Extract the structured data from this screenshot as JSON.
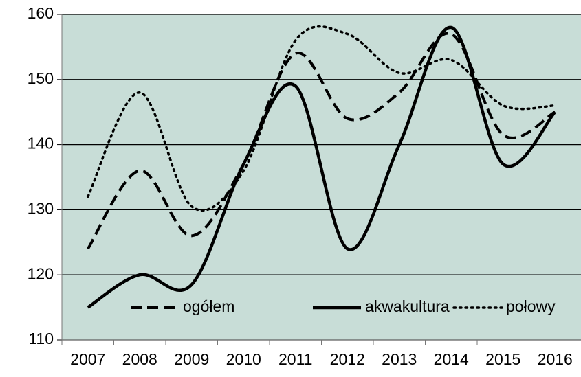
{
  "chart_data": {
    "type": "line",
    "categories": [
      "2007",
      "2008",
      "2009",
      "2010",
      "2011",
      "2012",
      "2013",
      "2014",
      "2015",
      "2016"
    ],
    "series": [
      {
        "name": "ogółem",
        "color": "#000000",
        "style": "dashed",
        "values": [
          124,
          136,
          126,
          137,
          154,
          144,
          148,
          157,
          141.5,
          145
        ]
      },
      {
        "name": "akwakultura",
        "color": "#000000",
        "style": "solid",
        "values": [
          115,
          120,
          118.5,
          137,
          149,
          124,
          140,
          158,
          137,
          145
        ]
      },
      {
        "name": "połowy",
        "color": "#000000",
        "style": "dotted",
        "values": [
          132,
          148,
          130.5,
          136,
          156,
          157,
          151,
          153,
          146,
          146
        ]
      }
    ],
    "ylim": [
      110,
      160
    ],
    "yticks": [
      110,
      120,
      130,
      140,
      150,
      160
    ],
    "grid": true,
    "smooth": true,
    "plot_background": "#c8ddd7",
    "legend": "bottom"
  }
}
